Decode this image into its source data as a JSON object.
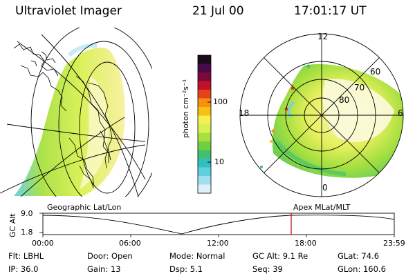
{
  "header": {
    "title": "Ultraviolet Imager",
    "date": "21 Jul 00",
    "time": "17:01:17 UT"
  },
  "colorbar": {
    "unit_label": "photon cm⁻²s⁻¹",
    "ticks": [
      "100",
      "10"
    ],
    "colors": [
      "#1a0a1a",
      "#4a0a4a",
      "#7a0a3a",
      "#c0102a",
      "#e8401a",
      "#f89010",
      "#f8c010",
      "#f8f050",
      "#d8f050",
      "#a8e040",
      "#70d040",
      "#40c070",
      "#30c0c0",
      "#60d0e0",
      "#a0e0f0",
      "#e0f0f8"
    ]
  },
  "polar_plot": {
    "labels": [
      "12",
      "18",
      "6",
      "0",
      "60",
      "70",
      "80"
    ]
  },
  "timeline": {
    "left_caption": "Geographic Lat/Lon",
    "right_caption": "Apex MLat/MLT",
    "axis_label": "GC Alt",
    "y_ticks": [
      "9.0",
      "1.8"
    ],
    "x_ticks": [
      "00:00",
      "06:00",
      "12:00",
      "18:00",
      "23:59"
    ],
    "marker_color": "#c00000"
  },
  "info": {
    "row1": [
      {
        "label": "Flt:",
        "value": "LBHL"
      },
      {
        "label": "Door:",
        "value": "Open"
      },
      {
        "label": "Mode:",
        "value": "Normal"
      },
      {
        "label": "GC Alt:",
        "value": "9.1 Re"
      },
      {
        "label": "GLat:",
        "value": "74.6"
      }
    ],
    "row2": [
      {
        "label": "IP:",
        "value": "36.0"
      },
      {
        "label": "Gain:",
        "value": "13"
      },
      {
        "label": "Dsp:",
        "value": "5.1"
      },
      {
        "label": "Seq:",
        "value": "39"
      },
      {
        "label": "GLon:",
        "value": "160.6"
      }
    ]
  }
}
